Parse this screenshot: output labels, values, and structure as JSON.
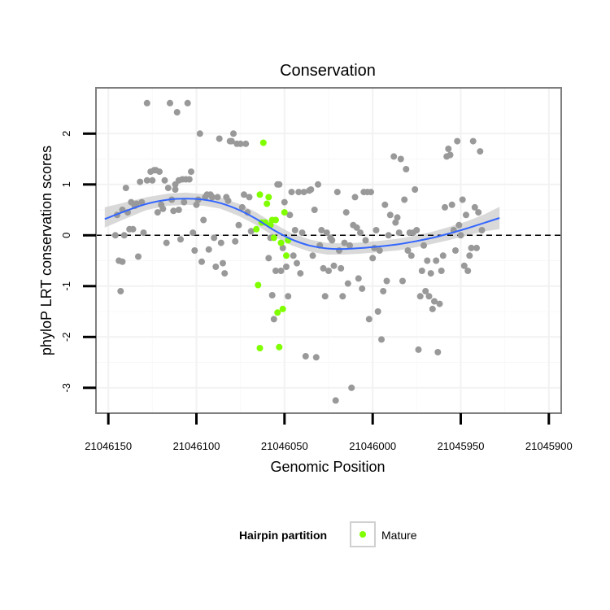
{
  "chart_data": {
    "type": "scatter",
    "title": "Conservation",
    "xlabel": "Genomic Position",
    "ylabel": "phyloP LRT conservation scores",
    "x_reversed": true,
    "xlim": [
      21046157,
      21045893
    ],
    "ylim": [
      -3.5,
      2.9
    ],
    "grid": true,
    "x_ticks": [
      21046150,
      21046100,
      21046050,
      21046000,
      21045950,
      21045900
    ],
    "x_tick_labels": [
      "21046150",
      "21046100",
      "21046050",
      "21046000",
      "21045950",
      "21045900"
    ],
    "y_ticks": [
      -3,
      -2,
      -1,
      0,
      1,
      2
    ],
    "y_tick_labels": [
      "-3",
      "-2",
      "-1",
      "0",
      "1",
      "2"
    ],
    "reference_line": {
      "y": 0,
      "style": "dashed"
    },
    "legend": {
      "title": "Hairpin partition",
      "position": "bottom",
      "entries": [
        {
          "label": "Mature",
          "color": "#7fff00"
        }
      ]
    },
    "series": [
      {
        "name": "Other",
        "color": "#999999",
        "points": [
          [
            21046146,
            0.0
          ],
          [
            21046145,
            0.4
          ],
          [
            21046144,
            -0.5
          ],
          [
            21046143,
            -1.1
          ],
          [
            21046142,
            -0.52
          ],
          [
            21046142,
            0.5
          ],
          [
            21046141,
            0.0
          ],
          [
            21046140,
            0.93
          ],
          [
            21046139,
            0.45
          ],
          [
            21046138,
            0.12
          ],
          [
            21046137,
            0.65
          ],
          [
            21046136,
            0.12
          ],
          [
            21046135,
            0.58
          ],
          [
            21046134,
            0.62
          ],
          [
            21046133,
            -0.42
          ],
          [
            21046132,
            1.05
          ],
          [
            21046131,
            0.65
          ],
          [
            21046130,
            0.05
          ],
          [
            21046128,
            2.6
          ],
          [
            21046128,
            1.08
          ],
          [
            21046126,
            1.25
          ],
          [
            21046125,
            1.08
          ],
          [
            21046124,
            1.28
          ],
          [
            21046123,
            1.28
          ],
          [
            21046122,
            0.45
          ],
          [
            21046121,
            1.25
          ],
          [
            21046120,
            0.6
          ],
          [
            21046119,
            0.52
          ],
          [
            21046118,
            1.08
          ],
          [
            21046117,
            -0.15
          ],
          [
            21046116,
            0.93
          ],
          [
            21046115,
            2.6
          ],
          [
            21046114,
            0.7
          ],
          [
            21046113,
            0.48
          ],
          [
            21046112,
            0.9
          ],
          [
            21046112,
            1.0
          ],
          [
            21046111,
            2.42
          ],
          [
            21046110,
            0.5
          ],
          [
            21046110,
            1.08
          ],
          [
            21046109,
            -0.08
          ],
          [
            21046108,
            1.1
          ],
          [
            21046107,
            0.65
          ],
          [
            21046106,
            1.1
          ],
          [
            21046105,
            2.6
          ],
          [
            21046104,
            1.1
          ],
          [
            21046103,
            1.25
          ],
          [
            21046102,
            0.05
          ],
          [
            21046101,
            -0.3
          ],
          [
            21046100,
            0.6
          ],
          [
            21046099,
            0.7
          ],
          [
            21046098,
            2.0
          ],
          [
            21046097,
            -0.52
          ],
          [
            21046096,
            0.3
          ],
          [
            21046095,
            0.75
          ],
          [
            21046094,
            0.8
          ],
          [
            21046093,
            -0.28
          ],
          [
            21046092,
            0.8
          ],
          [
            21046091,
            0.75
          ],
          [
            21046090,
            -0.05
          ],
          [
            21046089,
            -0.62
          ],
          [
            21046088,
            0.75
          ],
          [
            21046087,
            1.9
          ],
          [
            21046086,
            -0.15
          ],
          [
            21046085,
            -0.55
          ],
          [
            21046084,
            -0.75
          ],
          [
            21046083,
            0.75
          ],
          [
            21046082,
            0.68
          ],
          [
            21046081,
            1.85
          ],
          [
            21046080,
            1.85
          ],
          [
            21046079,
            2.0
          ],
          [
            21046078,
            -0.12
          ],
          [
            21046077,
            1.8
          ],
          [
            21046076,
            0.2
          ],
          [
            21046075,
            1.8
          ],
          [
            21046074,
            0.55
          ],
          [
            21046073,
            0.8
          ],
          [
            21046072,
            1.8
          ],
          [
            21046071,
            0.45
          ],
          [
            21046070,
            0.75
          ],
          [
            21046069,
            0.08
          ],
          [
            21046059,
            -0.45
          ],
          [
            21046058,
            -0.05
          ],
          [
            21046057,
            -1.18
          ],
          [
            21046056,
            -1.65
          ],
          [
            21046055,
            -0.7
          ],
          [
            21046054,
            1.0
          ],
          [
            21046053,
            1.0
          ],
          [
            21046052,
            -0.7
          ],
          [
            21046051,
            -0.25
          ],
          [
            21046050,
            0.65
          ],
          [
            21046049,
            -0.62
          ],
          [
            21046048,
            -1.2
          ],
          [
            21046047,
            0.4
          ],
          [
            21046046,
            0.85
          ],
          [
            21046045,
            -0.4
          ],
          [
            21046044,
            0.1
          ],
          [
            21046043,
            -0.55
          ],
          [
            21046042,
            0.85
          ],
          [
            21046041,
            -0.75
          ],
          [
            21046040,
            0.05
          ],
          [
            21046039,
            0.85
          ],
          [
            21046038,
            -2.38
          ],
          [
            21046036,
            0.88
          ],
          [
            21046035,
            0.9
          ],
          [
            21046034,
            -0.4
          ],
          [
            21046033,
            0.5
          ],
          [
            21046032,
            -2.4
          ],
          [
            21046031,
            1.0
          ],
          [
            21046030,
            -0.2
          ],
          [
            21046029,
            0.1
          ],
          [
            21046028,
            -0.65
          ],
          [
            21046027,
            -1.2
          ],
          [
            21046026,
            0.05
          ],
          [
            21046025,
            -0.7
          ],
          [
            21046024,
            -0.05
          ],
          [
            21046023,
            -0.1
          ],
          [
            21046022,
            -0.6
          ],
          [
            21046021,
            -3.25
          ],
          [
            21046020,
            0.85
          ],
          [
            21046019,
            -0.3
          ],
          [
            21046018,
            -0.65
          ],
          [
            21046017,
            -1.2
          ],
          [
            21046016,
            -0.15
          ],
          [
            21046015,
            0.45
          ],
          [
            21046014,
            -0.95
          ],
          [
            21046013,
            -0.2
          ],
          [
            21046012,
            -3.0
          ],
          [
            21046011,
            0.2
          ],
          [
            21046010,
            0.75
          ],
          [
            21046009,
            0.15
          ],
          [
            21046008,
            -0.85
          ],
          [
            21046007,
            0.05
          ],
          [
            21046006,
            -1.05
          ],
          [
            21046005,
            0.85
          ],
          [
            21046004,
            -0.1
          ],
          [
            21046003,
            0.85
          ],
          [
            21046002,
            -1.65
          ],
          [
            21046001,
            0.85
          ],
          [
            21046000,
            -0.45
          ],
          [
            21045999,
            -0.25
          ],
          [
            21045998,
            0.1
          ],
          [
            21045997,
            -1.5
          ],
          [
            21045996,
            -0.3
          ],
          [
            21045995,
            -2.05
          ],
          [
            21045994,
            -1.1
          ],
          [
            21045993,
            0.6
          ],
          [
            21045992,
            -0.9
          ],
          [
            21045991,
            0.0
          ],
          [
            21045990,
            0.4
          ],
          [
            21045988,
            1.55
          ],
          [
            21045987,
            0.25
          ],
          [
            21045986,
            0.35
          ],
          [
            21045985,
            0.05
          ],
          [
            21045984,
            1.5
          ],
          [
            21045983,
            -0.9
          ],
          [
            21045982,
            0.7
          ],
          [
            21045981,
            1.3
          ],
          [
            21045980,
            -0.3
          ],
          [
            21045979,
            0.05
          ],
          [
            21045978,
            -0.4
          ],
          [
            21045977,
            0.05
          ],
          [
            21045976,
            0.9
          ],
          [
            21045975,
            0.1
          ],
          [
            21045974,
            -2.25
          ],
          [
            21045973,
            -1.2
          ],
          [
            21045972,
            -0.7
          ],
          [
            21045971,
            -0.2
          ],
          [
            21045970,
            -1.1
          ],
          [
            21045969,
            -0.5
          ],
          [
            21045968,
            -1.2
          ],
          [
            21045967,
            -0.75
          ],
          [
            21045966,
            -1.45
          ],
          [
            21045965,
            -1.3
          ],
          [
            21045964,
            -0.5
          ],
          [
            21045963,
            -2.3
          ],
          [
            21045962,
            -1.35
          ],
          [
            21045961,
            -0.7
          ],
          [
            21045960,
            -0.4
          ],
          [
            21045959,
            0.55
          ],
          [
            21045958,
            1.55
          ],
          [
            21045957,
            1.7
          ],
          [
            21045956,
            1.58
          ],
          [
            21045955,
            0.6
          ],
          [
            21045954,
            0.1
          ],
          [
            21045953,
            -0.3
          ],
          [
            21045952,
            1.85
          ],
          [
            21045951,
            0.2
          ],
          [
            21045950,
            0.0
          ],
          [
            21045949,
            0.7
          ],
          [
            21045948,
            -0.6
          ],
          [
            21045947,
            0.4
          ],
          [
            21045946,
            -0.7
          ],
          [
            21045945,
            -0.4
          ],
          [
            21045944,
            -0.25
          ],
          [
            21045943,
            1.85
          ],
          [
            21045942,
            0.55
          ],
          [
            21045941,
            -0.25
          ],
          [
            21045940,
            0.45
          ],
          [
            21045939,
            1.65
          ],
          [
            21045938,
            0.1
          ]
        ]
      },
      {
        "name": "Mature",
        "color": "#7fff00",
        "points": [
          [
            21046064,
            0.8
          ],
          [
            21046063,
            0.25
          ],
          [
            21046062,
            1.82
          ],
          [
            21046061,
            0.25
          ],
          [
            21046060,
            0.62
          ],
          [
            21046059,
            0.75
          ],
          [
            21046058,
            0.2
          ],
          [
            21046057,
            0.3
          ],
          [
            21046056,
            -0.05
          ],
          [
            21046055,
            0.3
          ],
          [
            21046066,
            0.12
          ],
          [
            21046065,
            -0.98
          ],
          [
            21046064,
            -2.22
          ],
          [
            21046054,
            -1.52
          ],
          [
            21046053,
            -2.2
          ],
          [
            21046052,
            -0.15
          ],
          [
            21046051,
            -1.45
          ],
          [
            21046050,
            0.45
          ],
          [
            21046049,
            -0.4
          ],
          [
            21046048,
            -0.1
          ]
        ]
      }
    ],
    "smooth": {
      "method": "loess",
      "line_color": "#3366ff",
      "band_color": "#cccccc",
      "points": [
        [
          21046152,
          0.32,
          0.15,
          0.55
        ],
        [
          21046140,
          0.48,
          0.33,
          0.65
        ],
        [
          21046128,
          0.62,
          0.5,
          0.75
        ],
        [
          21046116,
          0.7,
          0.58,
          0.82
        ],
        [
          21046106,
          0.72,
          0.6,
          0.84
        ],
        [
          21046096,
          0.7,
          0.58,
          0.81
        ],
        [
          21046086,
          0.63,
          0.52,
          0.74
        ],
        [
          21046076,
          0.5,
          0.38,
          0.62
        ],
        [
          21046066,
          0.32,
          0.2,
          0.45
        ],
        [
          21046056,
          0.1,
          -0.02,
          0.23
        ],
        [
          21046046,
          -0.08,
          -0.2,
          0.04
        ],
        [
          21046036,
          -0.2,
          -0.32,
          -0.08
        ],
        [
          21046026,
          -0.26,
          -0.38,
          -0.15
        ],
        [
          21046016,
          -0.27,
          -0.38,
          -0.16
        ],
        [
          21046006,
          -0.25,
          -0.36,
          -0.14
        ],
        [
          21045996,
          -0.22,
          -0.33,
          -0.11
        ],
        [
          21045986,
          -0.18,
          -0.3,
          -0.07
        ],
        [
          21045976,
          -0.12,
          -0.24,
          -0.01
        ],
        [
          21045966,
          -0.05,
          -0.17,
          0.07
        ],
        [
          21045956,
          0.04,
          -0.09,
          0.17
        ],
        [
          21045946,
          0.14,
          0.0,
          0.28
        ],
        [
          21045936,
          0.25,
          0.08,
          0.42
        ],
        [
          21045928,
          0.34,
          0.12,
          0.56
        ]
      ]
    }
  }
}
